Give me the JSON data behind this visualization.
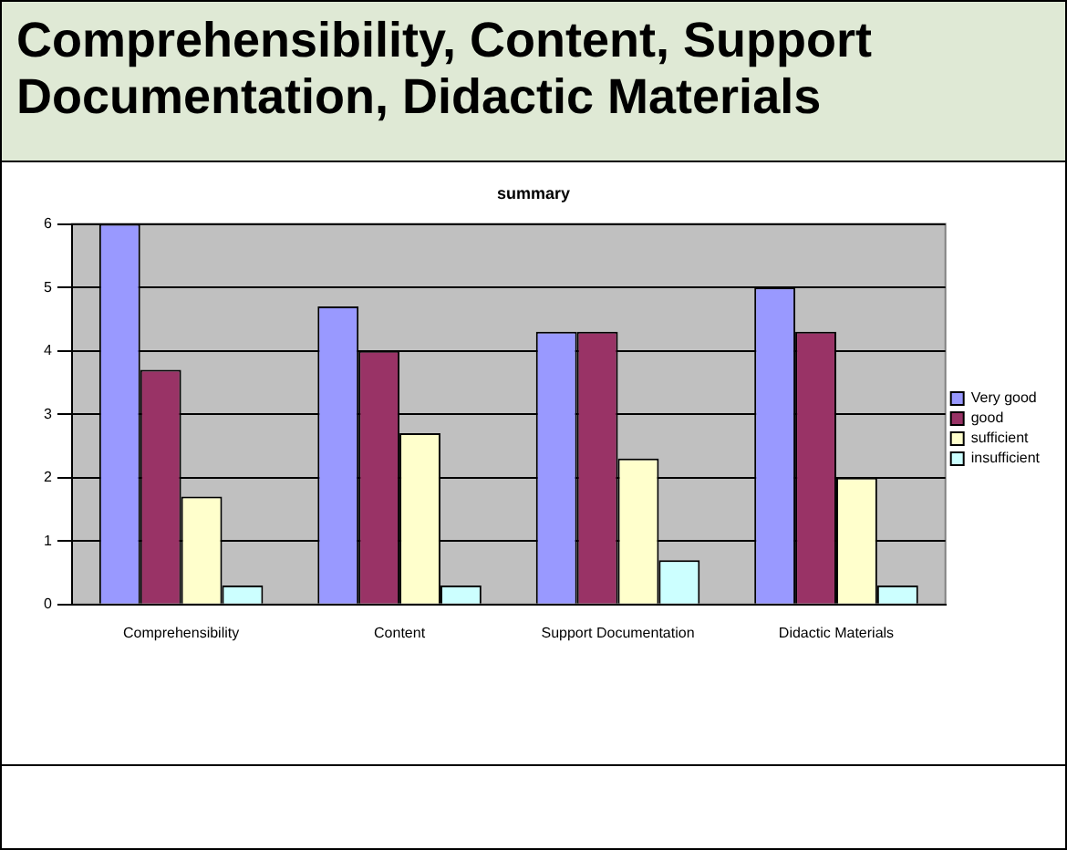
{
  "chart_data": {
    "type": "bar",
    "title": "Comprehensibility, Content, Support Documentation, Didactic Materials",
    "subtitle": "summary",
    "categories": [
      "Comprehensibility",
      "Content",
      "Support Documentation",
      "Didactic Materials"
    ],
    "series": [
      {
        "name": "Very good",
        "color": "#9999ff",
        "values": [
          6,
          4.7,
          4.3,
          5
        ]
      },
      {
        "name": "good",
        "color": "#993366",
        "values": [
          3.7,
          4,
          4.3,
          4.3
        ]
      },
      {
        "name": "sufficient",
        "color": "#ffffcc",
        "values": [
          1.7,
          2.7,
          2.3,
          2
        ]
      },
      {
        "name": "insufficient",
        "color": "#ccffff",
        "values": [
          0.3,
          0.3,
          0.7,
          0.3
        ]
      }
    ],
    "ylim": [
      0,
      6
    ],
    "yticks": [
      0,
      1,
      2,
      3,
      4,
      5,
      6
    ],
    "grid": "y",
    "legend": "right"
  }
}
